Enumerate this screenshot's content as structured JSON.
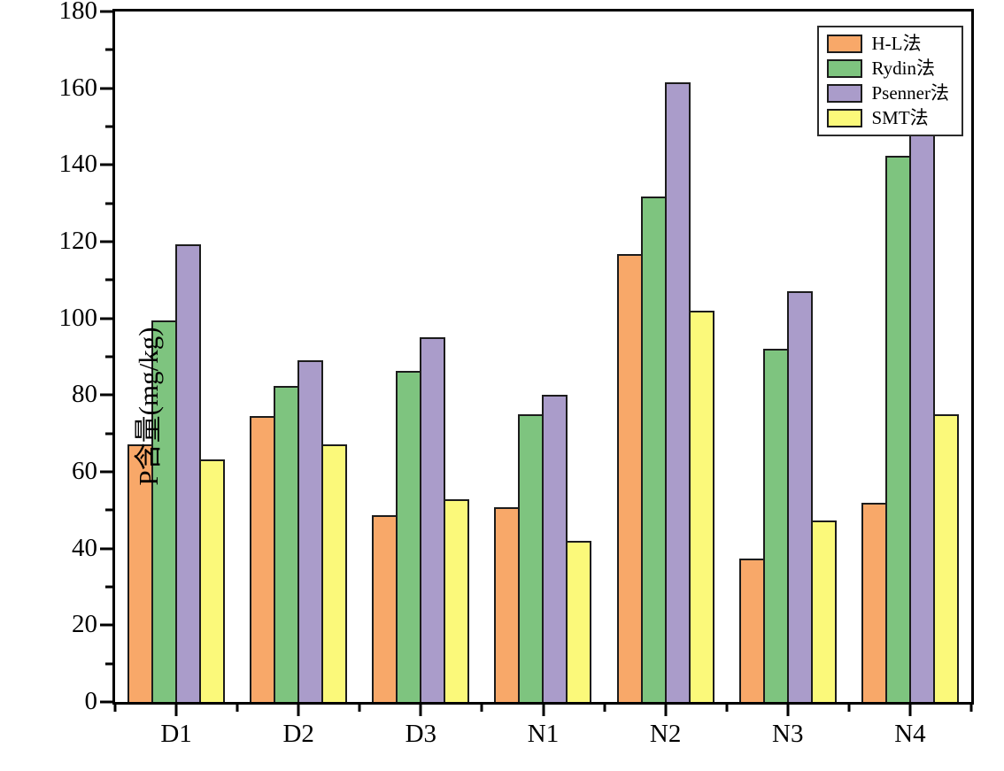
{
  "chart_data": {
    "type": "bar",
    "title": "",
    "xlabel": "",
    "ylabel": "P含量(mg/kg)",
    "ylim": [
      0,
      180
    ],
    "y_major_step": 20,
    "y_minor_step": 10,
    "grid": false,
    "legend_position": "top-right-inside",
    "axis_color": "#000000",
    "bar_edge_color": "#1c1c1c",
    "categories": [
      "D1",
      "D2",
      "D3",
      "N1",
      "N2",
      "N3",
      "N4"
    ],
    "series": [
      {
        "name": "H-L法",
        "color": "#F8A869",
        "values": [
          67.2,
          74.5,
          48.8,
          50.8,
          116.8,
          37.5,
          52.0
        ]
      },
      {
        "name": "Rydin法",
        "color": "#7EC47F",
        "values": [
          99.5,
          82.3,
          86.2,
          75.0,
          131.7,
          92.0,
          142.5
        ]
      },
      {
        "name": "Psenner法",
        "color": "#AA9CCA",
        "values": [
          119.3,
          89.0,
          95.0,
          80.0,
          161.5,
          107.0,
          151.0
        ]
      },
      {
        "name": "SMT法",
        "color": "#FBF97A",
        "values": [
          63.3,
          67.2,
          52.8,
          42.0,
          102.0,
          47.3,
          75.0
        ]
      }
    ]
  }
}
